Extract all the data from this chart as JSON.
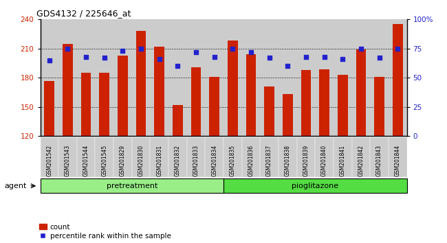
{
  "title": "GDS4132 / 225646_at",
  "categories": [
    "GSM201542",
    "GSM201543",
    "GSM201544",
    "GSM201545",
    "GSM201829",
    "GSM201830",
    "GSM201831",
    "GSM201832",
    "GSM201833",
    "GSM201834",
    "GSM201835",
    "GSM201836",
    "GSM201837",
    "GSM201838",
    "GSM201839",
    "GSM201840",
    "GSM201841",
    "GSM201842",
    "GSM201843",
    "GSM201844"
  ],
  "bar_values": [
    177,
    215,
    185,
    185,
    203,
    228,
    212,
    152,
    191,
    181,
    218,
    204,
    171,
    163,
    188,
    189,
    183,
    209,
    181,
    235
  ],
  "dot_values_pct": [
    65,
    75,
    68,
    67,
    73,
    75,
    66,
    60,
    72,
    68,
    75,
    72,
    67,
    60,
    68,
    68,
    66,
    75,
    67,
    75
  ],
  "bar_color": "#cc2200",
  "dot_color": "#2222cc",
  "ymin": 120,
  "ymax": 240,
  "yticks": [
    120,
    150,
    180,
    210,
    240
  ],
  "right_yticks": [
    0,
    25,
    50,
    75,
    100
  ],
  "groups": [
    {
      "label": "pretreatment",
      "start": 0,
      "end": 10,
      "color": "#99ee88"
    },
    {
      "label": "pioglitazone",
      "start": 10,
      "end": 20,
      "color": "#55dd44"
    }
  ],
  "agent_label": "agent",
  "legend_bar_label": "count",
  "legend_dot_label": "percentile rank within the sample",
  "col_bg_color": "#cccccc",
  "plot_bg_color": "#ffffff",
  "tick_label_color_left": "#cc2200",
  "tick_label_color_right": "#2222cc",
  "grid_color": "black",
  "n_pretreatment": 10
}
